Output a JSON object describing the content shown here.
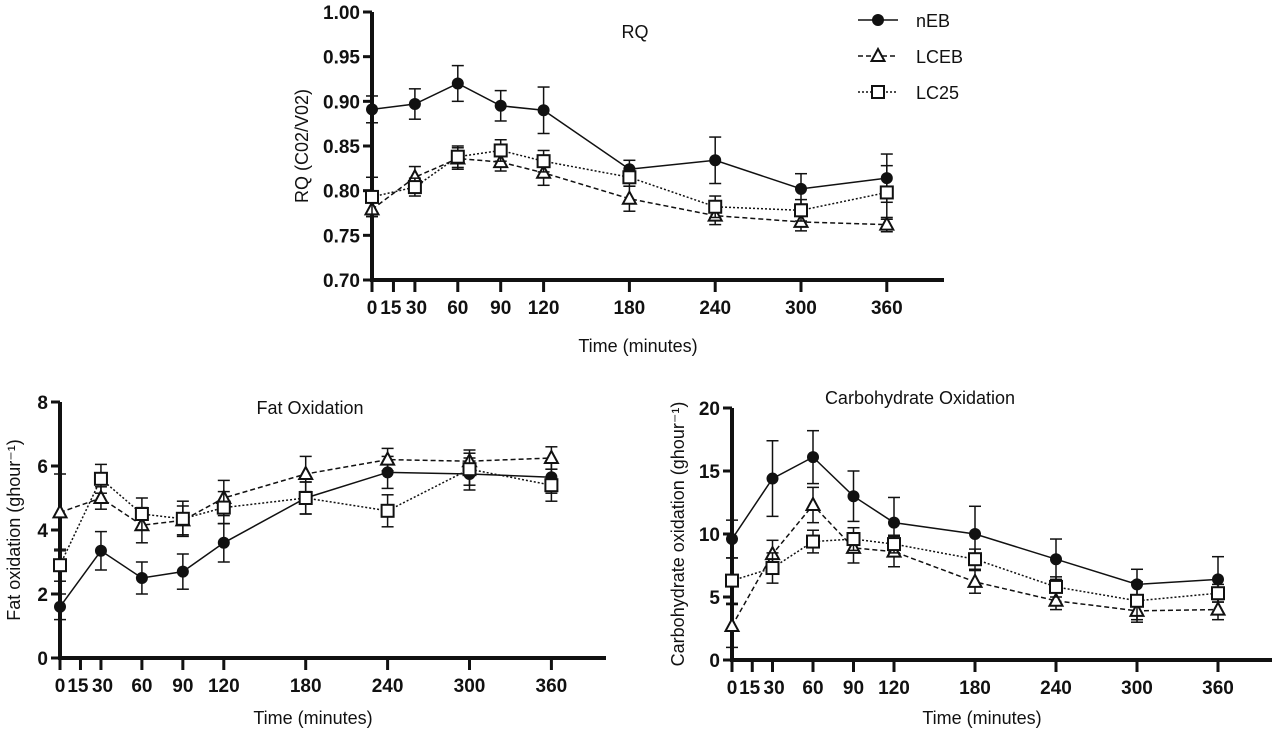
{
  "legend": {
    "placement": "top-right",
    "entries": [
      "nEB",
      "LCEB",
      "LC25"
    ]
  },
  "series_styles": [
    {
      "name": "nEB",
      "marker": "filled-circle",
      "line": "solid",
      "color": "#111111"
    },
    {
      "name": "LCEB",
      "marker": "open-triangle",
      "line": "dashed",
      "color": "#111111"
    },
    {
      "name": "LC25",
      "marker": "open-square",
      "line": "dotted",
      "color": "#111111"
    }
  ],
  "chart_data": [
    {
      "type": "line",
      "title": "RQ",
      "xlabel": "Time (minutes)",
      "ylabel": "RQ (C02/V02)",
      "x_ticks": [
        0,
        15,
        30,
        60,
        90,
        120,
        180,
        240,
        300,
        360
      ],
      "x_tick_labels": [
        "0",
        "15",
        "30",
        "60",
        "90",
        "120",
        "180",
        "240",
        "300",
        "360"
      ],
      "y_ticks": [
        0.7,
        0.75,
        0.8,
        0.85,
        0.9,
        0.95,
        1.0
      ],
      "y_tick_labels": [
        "0.70",
        "0.75",
        "0.80",
        "0.85",
        "0.90",
        "0.95",
        "1.00"
      ],
      "xlim": [
        0,
        400
      ],
      "ylim": [
        0.7,
        1.0
      ],
      "x": [
        0,
        30,
        60,
        90,
        120,
        180,
        240,
        300,
        360
      ],
      "series": [
        {
          "name": "nEB",
          "values": [
            0.891,
            0.897,
            0.92,
            0.895,
            0.89,
            0.824,
            0.834,
            0.802,
            0.814
          ],
          "error": [
            0.015,
            0.017,
            0.02,
            0.017,
            0.026,
            0.01,
            0.026,
            0.017,
            0.027
          ]
        },
        {
          "name": "LCEB",
          "values": [
            0.779,
            0.815,
            0.836,
            0.832,
            0.82,
            0.791,
            0.772,
            0.765,
            0.762
          ],
          "error": [
            0.008,
            0.012,
            0.012,
            0.01,
            0.014,
            0.014,
            0.01,
            0.01,
            0.008
          ]
        },
        {
          "name": "LC25",
          "values": [
            0.793,
            0.804,
            0.838,
            0.845,
            0.833,
            0.815,
            0.782,
            0.778,
            0.798
          ],
          "error": [
            0.022,
            0.01,
            0.012,
            0.012,
            0.012,
            0.01,
            0.012,
            0.012,
            0.03
          ]
        }
      ]
    },
    {
      "type": "line",
      "title": "Fat Oxidation",
      "xlabel": "Time (minutes)",
      "ylabel": "Fat oxidation (ghour⁻¹)",
      "x_ticks": [
        0,
        15,
        30,
        60,
        90,
        120,
        180,
        240,
        300,
        360
      ],
      "x_tick_labels": [
        "0",
        "15",
        "30",
        "60",
        "90",
        "120",
        "180",
        "240",
        "300",
        "360"
      ],
      "y_ticks": [
        0,
        2,
        4,
        6,
        8
      ],
      "y_tick_labels": [
        "0",
        "2",
        "4",
        "6",
        "8"
      ],
      "xlim": [
        0,
        400
      ],
      "ylim": [
        0,
        8
      ],
      "x": [
        0,
        30,
        60,
        90,
        120,
        180,
        240,
        300,
        360
      ],
      "series": [
        {
          "name": "nEB",
          "values": [
            1.6,
            3.35,
            2.5,
            2.7,
            3.6,
            5.0,
            5.8,
            5.75,
            5.65
          ],
          "error": [
            0.4,
            0.6,
            0.5,
            0.55,
            0.6,
            0.5,
            0.5,
            0.5,
            0.5
          ]
        },
        {
          "name": "LCEB",
          "values": [
            4.55,
            5.0,
            4.15,
            4.3,
            5.0,
            5.75,
            6.2,
            6.15,
            6.25
          ],
          "error": [
            1.2,
            0.35,
            0.55,
            0.45,
            0.55,
            0.55,
            0.35,
            0.35,
            0.35
          ]
        },
        {
          "name": "LC25",
          "values": [
            2.9,
            5.6,
            4.5,
            4.35,
            4.7,
            5.0,
            4.6,
            5.9,
            5.4
          ],
          "error": [
            0.5,
            0.45,
            0.5,
            0.55,
            0.5,
            0.5,
            0.5,
            0.5,
            0.5
          ]
        }
      ]
    },
    {
      "type": "line",
      "title": "Carbohydrate Oxidation",
      "xlabel": "Time (minutes)",
      "ylabel": "Carbohydrate oxidation (ghour⁻¹)",
      "x_ticks": [
        0,
        15,
        30,
        60,
        90,
        120,
        180,
        240,
        300,
        360
      ],
      "x_tick_labels": [
        "0",
        "15",
        "30",
        "60",
        "90",
        "120",
        "180",
        "240",
        "300",
        "360"
      ],
      "y_ticks": [
        0,
        5,
        10,
        15,
        20
      ],
      "y_tick_labels": [
        "0",
        "5",
        "10",
        "15",
        "20"
      ],
      "xlim": [
        0,
        400
      ],
      "ylim": [
        0,
        20
      ],
      "x": [
        0,
        30,
        60,
        90,
        120,
        180,
        240,
        300,
        360
      ],
      "series": [
        {
          "name": "nEB",
          "values": [
            9.6,
            14.4,
            16.1,
            13.0,
            10.9,
            10.0,
            8.0,
            6.0,
            6.4
          ],
          "error": [
            1.5,
            3.0,
            2.1,
            2.0,
            2.0,
            2.2,
            1.6,
            1.2,
            1.8
          ]
        },
        {
          "name": "LCEB",
          "values": [
            2.7,
            8.4,
            12.3,
            8.9,
            8.6,
            6.2,
            4.7,
            3.9,
            4.0
          ],
          "error": [
            1.7,
            1.1,
            1.4,
            1.2,
            1.2,
            0.9,
            0.7,
            0.9,
            0.8
          ]
        },
        {
          "name": "LC25",
          "values": [
            6.3,
            7.3,
            9.4,
            9.6,
            9.2,
            8.0,
            5.8,
            4.7,
            5.3
          ],
          "error": [
            1.8,
            1.2,
            0.9,
            0.9,
            0.7,
            0.8,
            0.8,
            1.5,
            0.7
          ]
        }
      ]
    }
  ]
}
